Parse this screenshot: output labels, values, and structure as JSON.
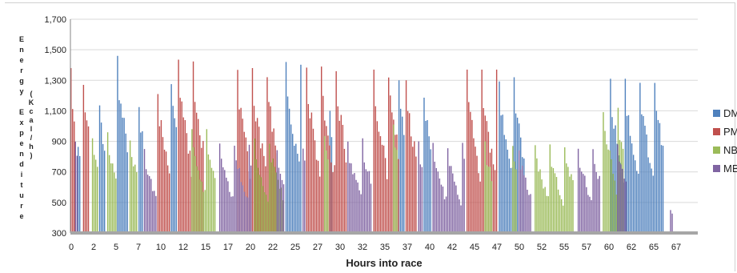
{
  "chart_data": {
    "type": "bar",
    "title": "",
    "xlabel": "Hours into race",
    "ylabel": "Energy Expenditure",
    "ylabel_units": "(Kcal/h)",
    "ylim": [
      300,
      1700
    ],
    "yticks": [
      "300",
      "500",
      "700",
      "900",
      "1,100",
      "1,300",
      "1,500",
      "1,700"
    ],
    "xticks": [
      "0",
      "2",
      "5",
      "7",
      "10",
      "12",
      "15",
      "17",
      "20",
      "22",
      "25",
      "27",
      "30",
      "32",
      "35",
      "37",
      "40",
      "42",
      "45",
      "47",
      "50",
      "52",
      "55",
      "57",
      "60",
      "62",
      "65",
      "67"
    ],
    "xlim_hours": [
      0,
      70
    ],
    "grid": "horizontal",
    "legend_position": "right",
    "series": [
      {
        "name": "DM",
        "color": "#4f81bd",
        "segments": [
          {
            "start": 0.8,
            "end": 1.3,
            "peak": 900
          },
          {
            "start": 3.2,
            "end": 4.1,
            "peak": 1160
          },
          {
            "start": 5.2,
            "end": 6.6,
            "peak": 1460
          },
          {
            "start": 7.6,
            "end": 8.2,
            "peak": 1160
          },
          {
            "start": 11.2,
            "end": 12.0,
            "peak": 1320
          },
          {
            "start": 24.0,
            "end": 25.9,
            "peak": 1420
          },
          {
            "start": 28.9,
            "end": 29.4,
            "peak": 1100
          },
          {
            "start": 36.6,
            "end": 37.4,
            "peak": 1300
          },
          {
            "start": 39.4,
            "end": 40.4,
            "peak": 1240
          },
          {
            "start": 47.8,
            "end": 50.9,
            "peak": 1320
          },
          {
            "start": 60.2,
            "end": 66.3,
            "peak": 1310
          }
        ]
      },
      {
        "name": "PM",
        "color": "#c0504d",
        "segments": [
          {
            "start": 0.0,
            "end": 0.6,
            "peak": 1380
          },
          {
            "start": 1.4,
            "end": 2.3,
            "peak": 1270
          },
          {
            "start": 9.7,
            "end": 11.2,
            "peak": 1240
          },
          {
            "start": 12.0,
            "end": 15.1,
            "peak": 1450
          },
          {
            "start": 18.6,
            "end": 23.2,
            "peak": 1380
          },
          {
            "start": 26.3,
            "end": 30.9,
            "peak": 1390
          },
          {
            "start": 33.8,
            "end": 36.8,
            "peak": 1370
          },
          {
            "start": 37.4,
            "end": 38.8,
            "peak": 1300
          },
          {
            "start": 44.2,
            "end": 47.8,
            "peak": 1370
          }
        ]
      },
      {
        "name": "NB",
        "color": "#9bbb59",
        "segments": [
          {
            "start": 2.4,
            "end": 3.2,
            "peak": 920
          },
          {
            "start": 4.1,
            "end": 5.2,
            "peak": 960
          },
          {
            "start": 6.6,
            "end": 7.6,
            "peak": 920
          },
          {
            "start": 13.5,
            "end": 16.3,
            "peak": 980
          },
          {
            "start": 20.5,
            "end": 23.8,
            "peak": 920
          },
          {
            "start": 28.3,
            "end": 28.9,
            "peak": 940
          },
          {
            "start": 36.0,
            "end": 36.6,
            "peak": 1010
          },
          {
            "start": 46.2,
            "end": 47.2,
            "peak": 900
          },
          {
            "start": 49.3,
            "end": 50.0,
            "peak": 870
          },
          {
            "start": 51.8,
            "end": 56.3,
            "peak": 880
          },
          {
            "start": 59.4,
            "end": 61.8,
            "peak": 1120
          }
        ]
      },
      {
        "name": "MB",
        "color": "#8064a2",
        "segments": [
          {
            "start": 0.5,
            "end": 0.9,
            "peak": 920
          },
          {
            "start": 8.2,
            "end": 9.7,
            "peak": 860
          },
          {
            "start": 16.6,
            "end": 20.4,
            "peak": 900
          },
          {
            "start": 23.0,
            "end": 24.0,
            "peak": 860
          },
          {
            "start": 25.9,
            "end": 26.3,
            "peak": 880
          },
          {
            "start": 30.9,
            "end": 33.8,
            "peak": 920
          },
          {
            "start": 38.8,
            "end": 39.4,
            "peak": 900
          },
          {
            "start": 40.4,
            "end": 44.2,
            "peak": 890
          },
          {
            "start": 50.0,
            "end": 51.6,
            "peak": 870
          },
          {
            "start": 56.6,
            "end": 59.2,
            "peak": 880
          },
          {
            "start": 61.0,
            "end": 62.2,
            "peak": 880
          },
          {
            "start": 66.9,
            "end": 67.2,
            "peak": 450
          }
        ]
      }
    ]
  }
}
